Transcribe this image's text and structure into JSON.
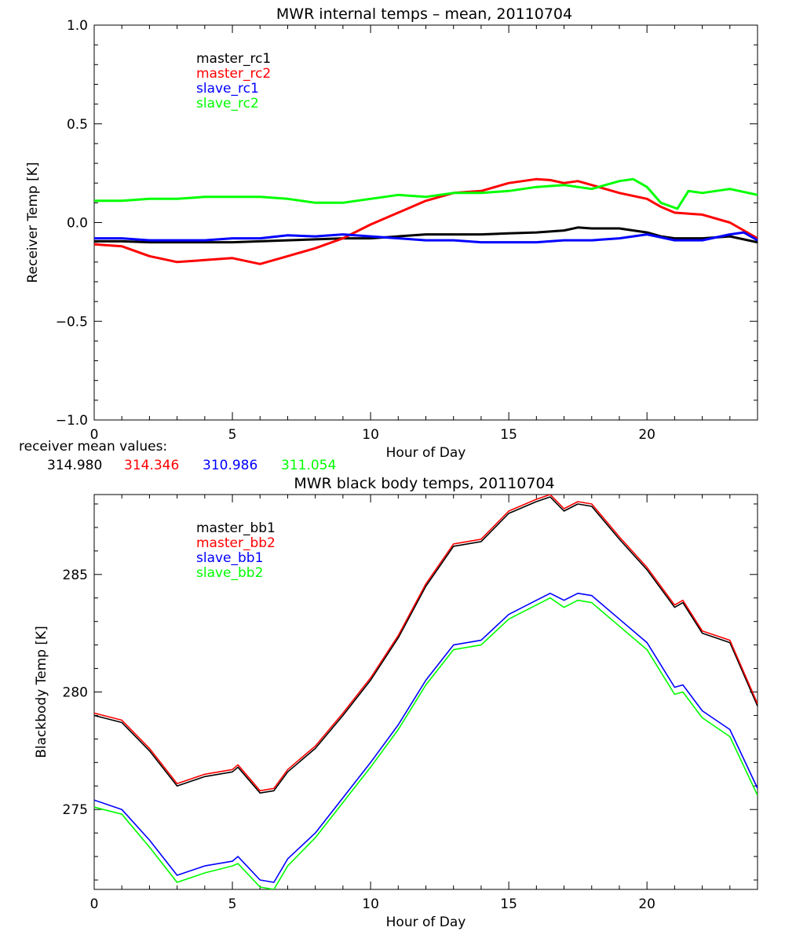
{
  "chart_data": [
    {
      "type": "line",
      "title": "MWR internal temps – mean, 20110704",
      "xlabel": "Hour of Day",
      "ylabel": "Receiver Temp [K]",
      "xlim": [
        0,
        24
      ],
      "ylim": [
        -1.0,
        1.0
      ],
      "x_ticks": [
        0,
        5,
        10,
        15,
        20
      ],
      "x_tick_labels": [
        "0",
        "5",
        "10",
        "15",
        "20"
      ],
      "y_ticks": [
        -1.0,
        -0.5,
        0.0,
        0.5,
        1.0
      ],
      "y_tick_labels": [
        "−1.0",
        "−0.5",
        "0.0",
        "0.5",
        "1.0"
      ],
      "grid": false,
      "legend_position": "top-left",
      "series": [
        {
          "name": "master_rc1",
          "color": "#000000",
          "points": [
            [
              0,
              -0.095
            ],
            [
              1,
              -0.095
            ],
            [
              2,
              -0.1
            ],
            [
              3,
              -0.1
            ],
            [
              4,
              -0.1
            ],
            [
              5,
              -0.1
            ],
            [
              6,
              -0.095
            ],
            [
              7,
              -0.09
            ],
            [
              8,
              -0.085
            ],
            [
              9,
              -0.08
            ],
            [
              10,
              -0.08
            ],
            [
              11,
              -0.07
            ],
            [
              12,
              -0.06
            ],
            [
              13,
              -0.06
            ],
            [
              14,
              -0.06
            ],
            [
              15,
              -0.055
            ],
            [
              16,
              -0.05
            ],
            [
              17,
              -0.04
            ],
            [
              17.5,
              -0.025
            ],
            [
              18,
              -0.03
            ],
            [
              19,
              -0.03
            ],
            [
              20,
              -0.05
            ],
            [
              20.5,
              -0.07
            ],
            [
              21,
              -0.08
            ],
            [
              22,
              -0.08
            ],
            [
              23,
              -0.07
            ],
            [
              24,
              -0.1
            ]
          ]
        },
        {
          "name": "master_rc2",
          "color": "#ff0000",
          "points": [
            [
              0,
              -0.11
            ],
            [
              1,
              -0.12
            ],
            [
              2,
              -0.17
            ],
            [
              3,
              -0.2
            ],
            [
              4,
              -0.19
            ],
            [
              5,
              -0.18
            ],
            [
              6,
              -0.21
            ],
            [
              7,
              -0.17
            ],
            [
              8,
              -0.13
            ],
            [
              9,
              -0.08
            ],
            [
              10,
              -0.01
            ],
            [
              11,
              0.05
            ],
            [
              12,
              0.11
            ],
            [
              13,
              0.15
            ],
            [
              14,
              0.16
            ],
            [
              15,
              0.2
            ],
            [
              16,
              0.22
            ],
            [
              16.5,
              0.215
            ],
            [
              17,
              0.2
            ],
            [
              17.5,
              0.21
            ],
            [
              18,
              0.19
            ],
            [
              19,
              0.15
            ],
            [
              20,
              0.12
            ],
            [
              20.5,
              0.08
            ],
            [
              21,
              0.05
            ],
            [
              22,
              0.04
            ],
            [
              23,
              0.0
            ],
            [
              24,
              -0.08
            ]
          ]
        },
        {
          "name": "slave_rc1",
          "color": "#0000ff",
          "points": [
            [
              0,
              -0.08
            ],
            [
              1,
              -0.08
            ],
            [
              2,
              -0.09
            ],
            [
              3,
              -0.09
            ],
            [
              4,
              -0.09
            ],
            [
              5,
              -0.08
            ],
            [
              6,
              -0.08
            ],
            [
              7,
              -0.065
            ],
            [
              8,
              -0.07
            ],
            [
              9,
              -0.06
            ],
            [
              10,
              -0.07
            ],
            [
              11,
              -0.08
            ],
            [
              12,
              -0.09
            ],
            [
              13,
              -0.09
            ],
            [
              14,
              -0.1
            ],
            [
              15,
              -0.1
            ],
            [
              16,
              -0.1
            ],
            [
              17,
              -0.09
            ],
            [
              18,
              -0.09
            ],
            [
              19,
              -0.08
            ],
            [
              20,
              -0.06
            ],
            [
              21,
              -0.09
            ],
            [
              22,
              -0.09
            ],
            [
              23,
              -0.06
            ],
            [
              23.5,
              -0.05
            ],
            [
              24,
              -0.09
            ]
          ]
        },
        {
          "name": "slave_rc2",
          "color": "#00ff00",
          "points": [
            [
              0,
              0.11
            ],
            [
              1,
              0.11
            ],
            [
              2,
              0.12
            ],
            [
              3,
              0.12
            ],
            [
              4,
              0.13
            ],
            [
              5,
              0.13
            ],
            [
              6,
              0.13
            ],
            [
              7,
              0.12
            ],
            [
              8,
              0.1
            ],
            [
              9,
              0.1
            ],
            [
              10,
              0.12
            ],
            [
              11,
              0.14
            ],
            [
              12,
              0.13
            ],
            [
              13,
              0.15
            ],
            [
              14,
              0.15
            ],
            [
              15,
              0.16
            ],
            [
              16,
              0.18
            ],
            [
              17,
              0.19
            ],
            [
              18,
              0.17
            ],
            [
              19,
              0.21
            ],
            [
              19.5,
              0.22
            ],
            [
              20,
              0.18
            ],
            [
              20.5,
              0.1
            ],
            [
              21.1,
              0.07
            ],
            [
              21.5,
              0.16
            ],
            [
              22,
              0.15
            ],
            [
              23,
              0.17
            ],
            [
              24,
              0.14
            ]
          ]
        }
      ]
    },
    {
      "type": "line",
      "title": "MWR black body temps, 20110704",
      "xlabel": "Hour of Day",
      "ylabel": "Blackbody Temp [K]",
      "xlim": [
        0,
        24
      ],
      "ylim": [
        271.6,
        288.4
      ],
      "x_ticks": [
        0,
        5,
        10,
        15,
        20
      ],
      "x_tick_labels": [
        "0",
        "5",
        "10",
        "15",
        "20"
      ],
      "y_ticks": [
        275,
        280,
        285
      ],
      "y_tick_labels": [
        "275",
        "280",
        "285"
      ],
      "grid": false,
      "legend_position": "top-left",
      "series": [
        {
          "name": "master_bb1",
          "color": "#000000",
          "points": [
            [
              0,
              279.0
            ],
            [
              1,
              278.7
            ],
            [
              2,
              277.5
            ],
            [
              3,
              276.0
            ],
            [
              4,
              276.4
            ],
            [
              5,
              276.6
            ],
            [
              5.2,
              276.8
            ],
            [
              6,
              275.7
            ],
            [
              6.5,
              275.8
            ],
            [
              7,
              276.6
            ],
            [
              8,
              277.6
            ],
            [
              9,
              279.0
            ],
            [
              10,
              280.5
            ],
            [
              11,
              282.3
            ],
            [
              12,
              284.5
            ],
            [
              13,
              286.2
            ],
            [
              14,
              286.4
            ],
            [
              15,
              287.6
            ],
            [
              16,
              288.1
            ],
            [
              16.5,
              288.3
            ],
            [
              17,
              287.7
            ],
            [
              17.5,
              288.0
            ],
            [
              18,
              287.9
            ],
            [
              19,
              286.5
            ],
            [
              20,
              285.2
            ],
            [
              21,
              283.6
            ],
            [
              21.3,
              283.8
            ],
            [
              22,
              282.5
            ],
            [
              23,
              282.1
            ],
            [
              24,
              279.4
            ]
          ]
        },
        {
          "name": "master_bb2",
          "color": "#ff0000",
          "points": [
            [
              0,
              279.1
            ],
            [
              1,
              278.8
            ],
            [
              2,
              277.6
            ],
            [
              3,
              276.1
            ],
            [
              4,
              276.5
            ],
            [
              5,
              276.7
            ],
            [
              5.2,
              276.9
            ],
            [
              6,
              275.8
            ],
            [
              6.5,
              275.9
            ],
            [
              7,
              276.7
            ],
            [
              8,
              277.7
            ],
            [
              9,
              279.1
            ],
            [
              10,
              280.6
            ],
            [
              11,
              282.4
            ],
            [
              12,
              284.6
            ],
            [
              13,
              286.3
            ],
            [
              14,
              286.5
            ],
            [
              15,
              287.7
            ],
            [
              16,
              288.2
            ],
            [
              16.5,
              288.4
            ],
            [
              17,
              287.8
            ],
            [
              17.5,
              288.1
            ],
            [
              18,
              288.0
            ],
            [
              19,
              286.6
            ],
            [
              20,
              285.3
            ],
            [
              21,
              283.7
            ],
            [
              21.3,
              283.9
            ],
            [
              22,
              282.6
            ],
            [
              23,
              282.2
            ],
            [
              24,
              279.5
            ]
          ]
        },
        {
          "name": "slave_bb1",
          "color": "#0000ff",
          "points": [
            [
              0,
              275.4
            ],
            [
              1,
              275.0
            ],
            [
              2,
              273.7
            ],
            [
              3,
              272.2
            ],
            [
              4,
              272.6
            ],
            [
              5,
              272.8
            ],
            [
              5.2,
              273.0
            ],
            [
              6,
              272.0
            ],
            [
              6.5,
              271.9
            ],
            [
              7,
              272.9
            ],
            [
              8,
              274.0
            ],
            [
              9,
              275.5
            ],
            [
              10,
              277.0
            ],
            [
              11,
              278.6
            ],
            [
              12,
              280.5
            ],
            [
              13,
              282.0
            ],
            [
              14,
              282.2
            ],
            [
              15,
              283.3
            ],
            [
              16,
              283.9
            ],
            [
              16.5,
              284.2
            ],
            [
              17,
              283.9
            ],
            [
              17.5,
              284.2
            ],
            [
              18,
              284.1
            ],
            [
              19,
              283.1
            ],
            [
              20,
              282.1
            ],
            [
              21,
              280.2
            ],
            [
              21.3,
              280.3
            ],
            [
              22,
              279.2
            ],
            [
              23,
              278.4
            ],
            [
              24,
              275.9
            ]
          ]
        },
        {
          "name": "slave_bb2",
          "color": "#00ff00",
          "points": [
            [
              0,
              275.1
            ],
            [
              1,
              274.8
            ],
            [
              2,
              273.4
            ],
            [
              3,
              271.9
            ],
            [
              4,
              272.3
            ],
            [
              5,
              272.6
            ],
            [
              5.2,
              272.7
            ],
            [
              6,
              271.7
            ],
            [
              6.5,
              271.6
            ],
            [
              7,
              272.6
            ],
            [
              8,
              273.8
            ],
            [
              9,
              275.3
            ],
            [
              10,
              276.8
            ],
            [
              11,
              278.4
            ],
            [
              12,
              280.3
            ],
            [
              13,
              281.8
            ],
            [
              14,
              282.0
            ],
            [
              15,
              283.1
            ],
            [
              16,
              283.7
            ],
            [
              16.5,
              284.0
            ],
            [
              17,
              283.6
            ],
            [
              17.5,
              283.9
            ],
            [
              18,
              283.8
            ],
            [
              19,
              282.8
            ],
            [
              20,
              281.8
            ],
            [
              21,
              279.9
            ],
            [
              21.3,
              280.0
            ],
            [
              22,
              278.9
            ],
            [
              23,
              278.1
            ],
            [
              24,
              275.6
            ]
          ]
        }
      ]
    }
  ],
  "footer": {
    "label": "receiver mean values:",
    "values": [
      "314.980",
      "314.346",
      "310.986",
      "311.054"
    ],
    "colors": [
      "#000000",
      "#ff0000",
      "#0000ff",
      "#00ff00"
    ]
  }
}
